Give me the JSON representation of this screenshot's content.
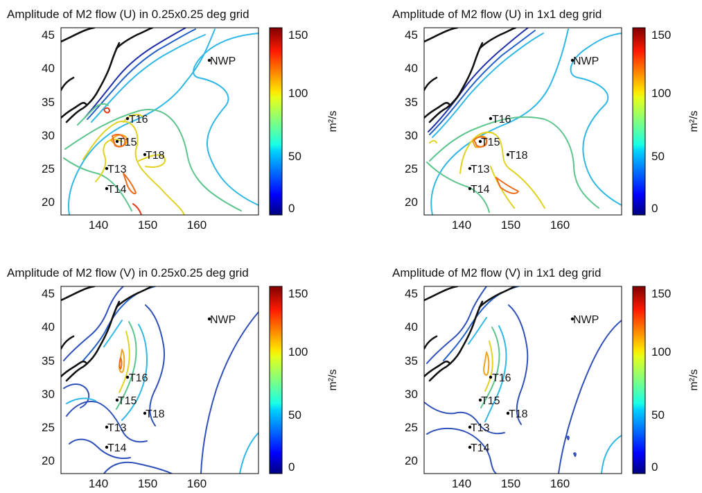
{
  "figure": {
    "background": "#ffffff"
  },
  "chart_data": [
    {
      "type": "heatmap",
      "title": "Amplitude of M2 flow (U) in 0.25x0.25 deg grid",
      "xticks": [
        "140",
        "150",
        "160"
      ],
      "yticks": [
        "20",
        "25",
        "30",
        "35",
        "40",
        "45"
      ],
      "xlim": [
        130,
        170
      ],
      "ylim": [
        18,
        46
      ],
      "colorbar": {
        "ticks": [
          "0",
          "50",
          "100",
          "150"
        ],
        "range": [
          0,
          155
        ],
        "unit": "m²/s",
        "colormap": "jet"
      },
      "stations": [
        {
          "name": "NWP",
          "lon": 160,
          "lat": 41
        },
        {
          "name": "T16",
          "lon": 143.5,
          "lat": 32.5
        },
        {
          "name": "T15",
          "lon": 141.3,
          "lat": 29.1
        },
        {
          "name": "T18",
          "lon": 147.2,
          "lat": 27.2
        },
        {
          "name": "T13",
          "lon": 139.5,
          "lat": 25
        },
        {
          "name": "T14",
          "lon": 139.5,
          "lat": 22
        }
      ]
    },
    {
      "type": "heatmap",
      "title": "Amplitude of M2 flow (U) in 1x1 deg grid",
      "xticks": [
        "140",
        "150",
        "160"
      ],
      "yticks": [
        "20",
        "25",
        "30",
        "35",
        "40",
        "45"
      ],
      "xlim": [
        130,
        170
      ],
      "ylim": [
        18,
        46
      ],
      "colorbar": {
        "ticks": [
          "0",
          "50",
          "100",
          "150"
        ],
        "range": [
          0,
          155
        ],
        "unit": "m²/s",
        "colormap": "jet"
      },
      "stations": [
        {
          "name": "NWP",
          "lon": 160,
          "lat": 41
        },
        {
          "name": "T16",
          "lon": 143.5,
          "lat": 32.5
        },
        {
          "name": "T15",
          "lon": 141.3,
          "lat": 29.1
        },
        {
          "name": "T18",
          "lon": 147.2,
          "lat": 27.2
        },
        {
          "name": "T13",
          "lon": 139.5,
          "lat": 25
        },
        {
          "name": "T14",
          "lon": 139.5,
          "lat": 22
        }
      ]
    },
    {
      "type": "heatmap",
      "title": "Amplitude of M2 flow (V) in 0.25x0.25 deg grid",
      "xticks": [
        "140",
        "150",
        "160"
      ],
      "yticks": [
        "20",
        "25",
        "30",
        "35",
        "40",
        "45"
      ],
      "xlim": [
        130,
        170
      ],
      "ylim": [
        18,
        46
      ],
      "colorbar": {
        "ticks": [
          "0",
          "50",
          "100",
          "150"
        ],
        "range": [
          0,
          155
        ],
        "unit": "m²/s",
        "colormap": "jet"
      },
      "stations": [
        {
          "name": "NWP",
          "lon": 160,
          "lat": 41
        },
        {
          "name": "T16",
          "lon": 143.5,
          "lat": 32.5
        },
        {
          "name": "T15",
          "lon": 141.3,
          "lat": 29.1
        },
        {
          "name": "T18",
          "lon": 147.2,
          "lat": 27.2
        },
        {
          "name": "T13",
          "lon": 139.5,
          "lat": 25
        },
        {
          "name": "T14",
          "lon": 139.5,
          "lat": 22
        }
      ]
    },
    {
      "type": "heatmap",
      "title": "Amplitude of M2 flow (V) in 1x1 deg grid",
      "xticks": [
        "140",
        "150",
        "160"
      ],
      "yticks": [
        "20",
        "25",
        "30",
        "35",
        "40",
        "45"
      ],
      "xlim": [
        130,
        170
      ],
      "ylim": [
        18,
        46
      ],
      "colorbar": {
        "ticks": [
          "0",
          "50",
          "100",
          "150"
        ],
        "range": [
          0,
          155
        ],
        "unit": "m²/s",
        "colormap": "jet"
      },
      "stations": [
        {
          "name": "NWP",
          "lon": 160,
          "lat": 41
        },
        {
          "name": "T16",
          "lon": 143.5,
          "lat": 32.5
        },
        {
          "name": "T15",
          "lon": 141.3,
          "lat": 29.1
        },
        {
          "name": "T18",
          "lon": 147.2,
          "lat": 27.2
        },
        {
          "name": "T13",
          "lon": 139.5,
          "lat": 25
        },
        {
          "name": "T14",
          "lon": 139.5,
          "lat": 22
        }
      ]
    }
  ]
}
